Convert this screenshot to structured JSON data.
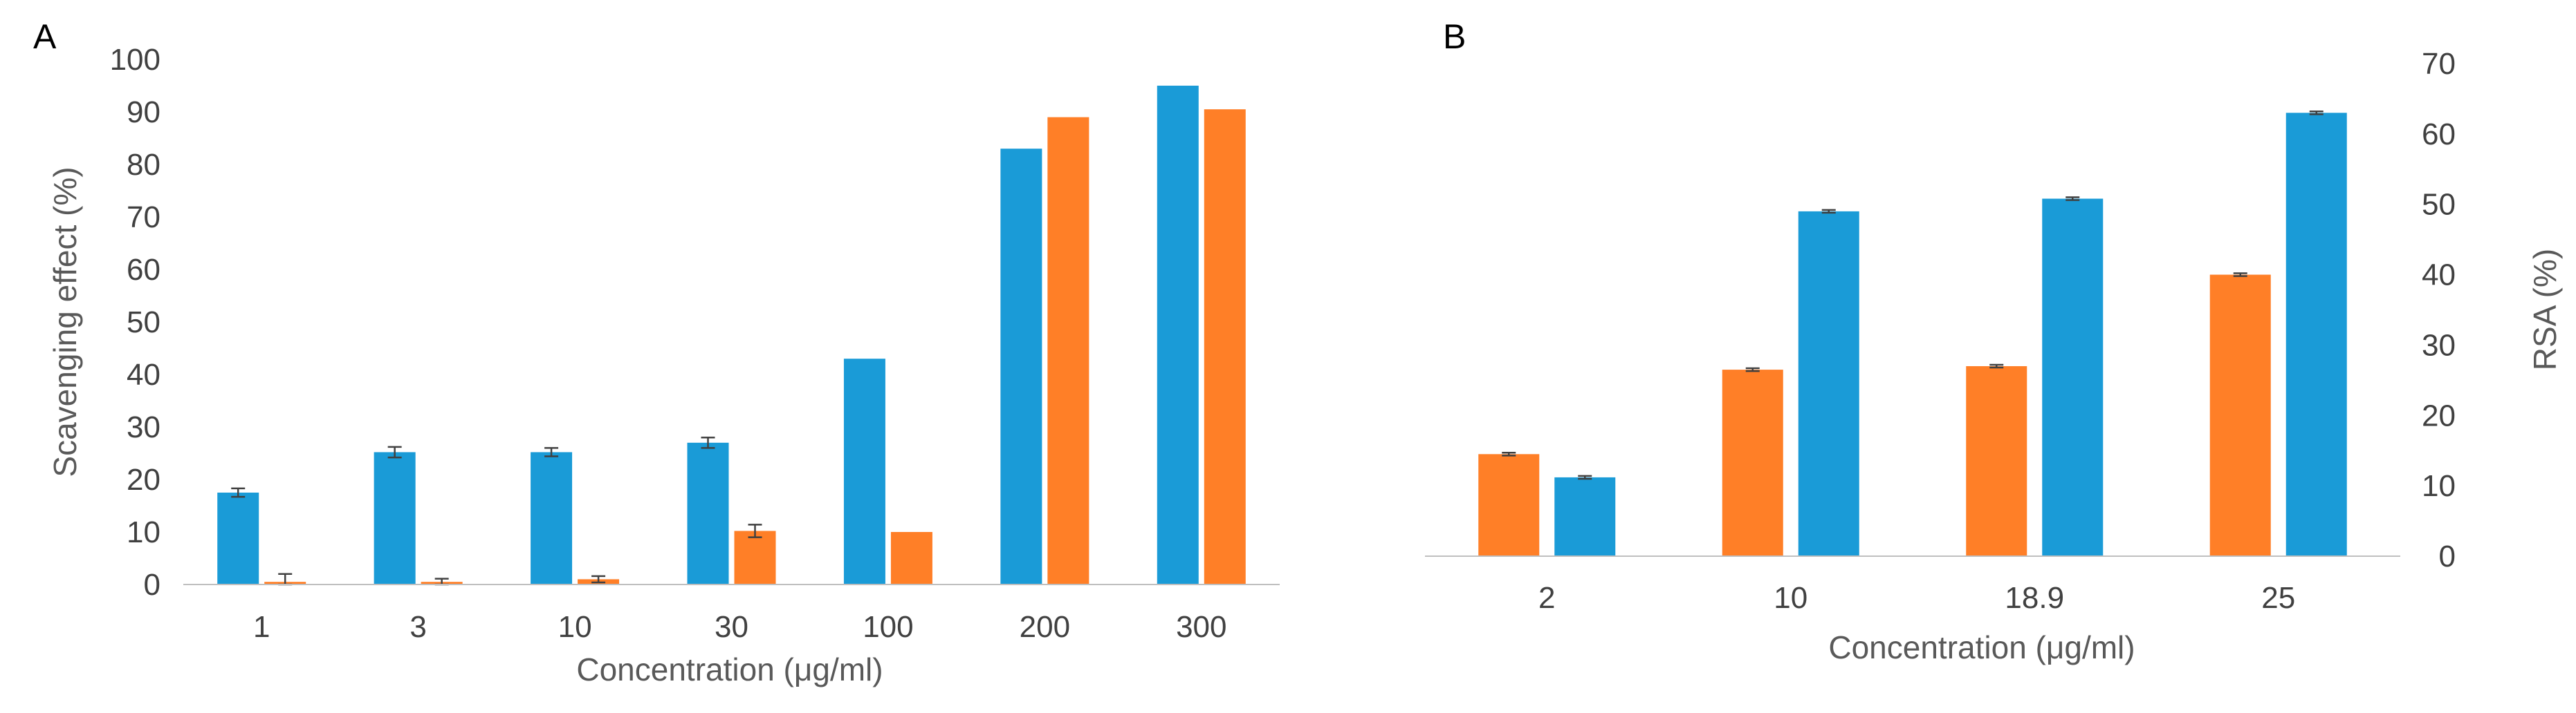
{
  "colors": {
    "blue": "#1A9BD7",
    "orange": "#FF7F27",
    "axis": "#BFBFBF",
    "errorbar": "#404040"
  },
  "chart_data": [
    {
      "panel": "A",
      "type": "bar",
      "categories": [
        "1",
        "3",
        "10",
        "30",
        "100",
        "200",
        "300"
      ],
      "series": [
        {
          "color": "blue",
          "values": [
            17.5,
            25.2,
            25.2,
            27.0,
            43.0,
            83.0,
            95.0
          ],
          "errors": [
            0.8,
            1.0,
            0.8,
            1.0,
            0,
            0,
            0
          ]
        },
        {
          "color": "orange",
          "values": [
            0.5,
            0.5,
            1.0,
            10.2,
            10.0,
            89.0,
            90.5
          ],
          "errors": [
            1.5,
            0.6,
            0.6,
            1.2,
            0,
            0,
            0
          ]
        }
      ],
      "xlabel": "Concentration (μg/ml)",
      "ylabel": "Scavenging effect (%)",
      "ylim": [
        0,
        100
      ],
      "yticks": [
        "0",
        "10",
        "20",
        "30",
        "40",
        "50",
        "60",
        "70",
        "80",
        "90",
        "100"
      ],
      "y_axis_side": "left"
    },
    {
      "panel": "B",
      "type": "bar",
      "categories": [
        "2",
        "10",
        "18.9",
        "25"
      ],
      "series": [
        {
          "color": "orange",
          "values": [
            14.5,
            26.5,
            27.0,
            40.0
          ],
          "errors": [
            0.2,
            0.2,
            0.2,
            0.2
          ]
        },
        {
          "color": "blue",
          "values": [
            11.2,
            49.0,
            50.8,
            63.0
          ],
          "errors": [
            0.2,
            0.2,
            0.2,
            0.2
          ]
        }
      ],
      "xlabel": "Concentration (μg/ml)",
      "ylabel": "RSA (%)",
      "ylim": [
        0,
        70
      ],
      "yticks": [
        "0",
        "10",
        "20",
        "30",
        "40",
        "50",
        "60",
        "70"
      ],
      "y_axis_side": "right"
    }
  ]
}
